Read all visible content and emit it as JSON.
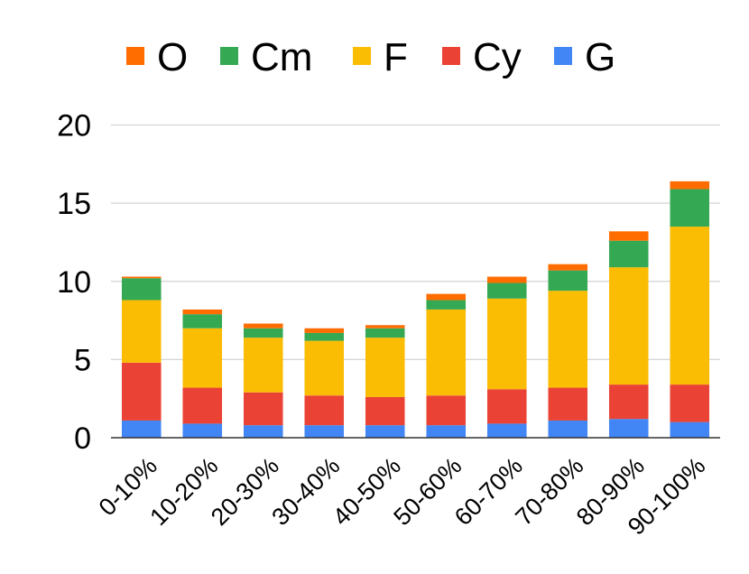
{
  "chart_data": {
    "type": "bar",
    "stacked": true,
    "title": "",
    "xlabel": "",
    "ylabel": "",
    "ylim": [
      0,
      20
    ],
    "yticks": [
      0,
      5,
      10,
      15,
      20
    ],
    "grid": true,
    "legend_position": "top",
    "categories": [
      "0-10%",
      "10-20%",
      "20-30%",
      "30-40%",
      "40-50%",
      "50-60%",
      "60-70%",
      "70-80%",
      "80-90%",
      "90-100%"
    ],
    "series": [
      {
        "name": "G",
        "color": "#4285F4",
        "values": [
          1.1,
          0.9,
          0.8,
          0.8,
          0.8,
          0.8,
          0.9,
          1.1,
          1.2,
          1.0
        ]
      },
      {
        "name": "Cy",
        "color": "#EA4335",
        "values": [
          3.7,
          2.3,
          2.1,
          1.9,
          1.8,
          1.9,
          2.2,
          2.1,
          2.2,
          2.4
        ]
      },
      {
        "name": "F",
        "color": "#FBBC04",
        "values": [
          4.0,
          3.8,
          3.5,
          3.5,
          3.8,
          5.5,
          5.8,
          6.2,
          7.5,
          10.1
        ]
      },
      {
        "name": "Cm",
        "color": "#34A853",
        "values": [
          1.4,
          0.9,
          0.6,
          0.5,
          0.6,
          0.6,
          1.0,
          1.3,
          1.7,
          2.4
        ]
      },
      {
        "name": "O",
        "color": "#FF6D01",
        "values": [
          0.1,
          0.3,
          0.3,
          0.3,
          0.2,
          0.4,
          0.4,
          0.4,
          0.6,
          0.5
        ]
      }
    ],
    "legend_order": [
      "O",
      "Cm",
      "F",
      "Cy",
      "G"
    ]
  }
}
